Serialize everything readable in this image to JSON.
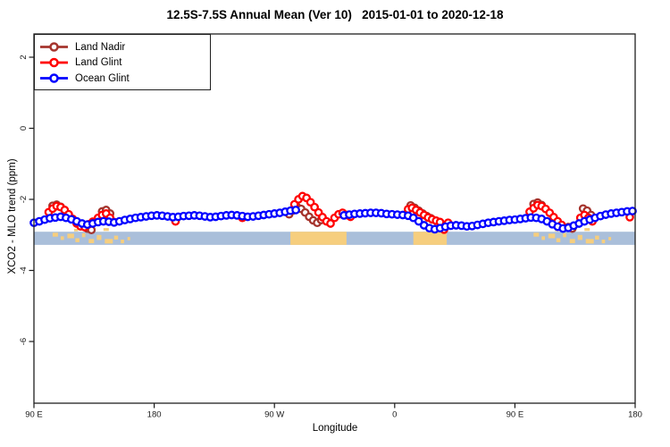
{
  "chart_data": {
    "type": "line",
    "title": "12.5S-7.5S Annual Mean (Ver 10)   2015-01-01 to 2020-12-18",
    "xlabel": "Longitude",
    "ylabel": "XCO2 - MLO trend (ppm)",
    "xlim": [
      90,
      540
    ],
    "ylim": [
      -7.7,
      2.65
    ],
    "grid": false,
    "legend_position": "top-left",
    "x_ticks": [
      {
        "lon": 90,
        "label": "90 E"
      },
      {
        "lon": 180,
        "label": "180"
      },
      {
        "lon": 270,
        "label": "90 W"
      },
      {
        "lon": 360,
        "label": "0"
      },
      {
        "lon": 450,
        "label": "90 E"
      },
      {
        "lon": 540,
        "label": "180"
      }
    ],
    "y_ticks": [
      {
        "v": 2,
        "label": "2"
      },
      {
        "v": 0,
        "label": "0"
      },
      {
        "v": -2,
        "label": "-2"
      },
      {
        "v": -4,
        "label": "-4"
      },
      {
        "v": -6,
        "label": "-6"
      }
    ],
    "legend": [
      {
        "label": "Land Nadir",
        "color": "#A5342D"
      },
      {
        "label": "Land Glint",
        "color": "#FF0000"
      },
      {
        "label": "Ocean Glint",
        "color": "#0000FF"
      }
    ],
    "map_band": {
      "v_top": -2.91,
      "v_bottom": -3.28,
      "ocean_color": "#AABFDA",
      "land_color": "#F6CE7E",
      "land_segments": [
        [
          282,
          324
        ],
        [
          374,
          399
        ]
      ],
      "islands": [
        {
          "lon": 104,
          "w": 4,
          "fy": 0.08,
          "fh": 0.3
        },
        {
          "lon": 110,
          "w": 2.5,
          "fy": 0.35,
          "fh": 0.28
        },
        {
          "lon": 115,
          "w": 5,
          "fy": 0.15,
          "fh": 0.35
        },
        {
          "lon": 121,
          "w": 3,
          "fy": 0.5,
          "fh": 0.3
        },
        {
          "lon": 126,
          "w": 2.5,
          "fy": 0.12,
          "fh": 0.3
        },
        {
          "lon": 131,
          "w": 4,
          "fy": 0.55,
          "fh": 0.32
        },
        {
          "lon": 137,
          "w": 3.5,
          "fy": 0.25,
          "fh": 0.38
        },
        {
          "lon": 143,
          "w": 6,
          "fy": 0.55,
          "fh": 0.35
        },
        {
          "lon": 150,
          "w": 3,
          "fy": 0.3,
          "fh": 0.3
        },
        {
          "lon": 155,
          "w": 2.5,
          "fy": 0.6,
          "fh": 0.28
        },
        {
          "lon": 120,
          "w": 3,
          "fy": -0.22,
          "fh": 0.2
        },
        {
          "lon": 142,
          "w": 4,
          "fy": -0.28,
          "fh": 0.22
        },
        {
          "lon": 160,
          "w": 2,
          "fy": 0.4,
          "fh": 0.25
        },
        {
          "lon": 464,
          "w": 4,
          "fy": 0.08,
          "fh": 0.3
        },
        {
          "lon": 470,
          "w": 2.5,
          "fy": 0.35,
          "fh": 0.28
        },
        {
          "lon": 475,
          "w": 5,
          "fy": 0.15,
          "fh": 0.35
        },
        {
          "lon": 481,
          "w": 3,
          "fy": 0.5,
          "fh": 0.3
        },
        {
          "lon": 486,
          "w": 2.5,
          "fy": 0.12,
          "fh": 0.3
        },
        {
          "lon": 491,
          "w": 4,
          "fy": 0.55,
          "fh": 0.32
        },
        {
          "lon": 497,
          "w": 3.5,
          "fy": 0.25,
          "fh": 0.38
        },
        {
          "lon": 503,
          "w": 6,
          "fy": 0.55,
          "fh": 0.35
        },
        {
          "lon": 510,
          "w": 3,
          "fy": 0.3,
          "fh": 0.3
        },
        {
          "lon": 515,
          "w": 2.5,
          "fy": 0.6,
          "fh": 0.28
        },
        {
          "lon": 480,
          "w": 3,
          "fy": -0.22,
          "fh": 0.2
        },
        {
          "lon": 502,
          "w": 4,
          "fy": -0.28,
          "fh": 0.22
        },
        {
          "lon": 520,
          "w": 2,
          "fy": 0.4,
          "fh": 0.25
        }
      ]
    },
    "series": [
      {
        "id": "land-nadir",
        "name": "Land Nadir",
        "color": "#A5342D",
        "points": [
          [
            104,
            -2.18
          ],
          [
            107,
            -2.15
          ],
          [
            110,
            -2.21
          ],
          [
            130,
            -2.82
          ],
          [
            133,
            -2.86
          ],
          [
            141,
            -2.34
          ],
          [
            144,
            -2.3
          ],
          [
            147,
            -2.4
          ],
          [
            281,
            -2.42
          ],
          [
            284,
            -2.31
          ],
          [
            287,
            -2.22
          ],
          [
            290,
            -2.27
          ],
          [
            293,
            -2.37
          ],
          [
            296,
            -2.49
          ],
          [
            299,
            -2.59
          ],
          [
            302,
            -2.66
          ],
          [
            305,
            -2.58
          ],
          [
            372,
            -2.17
          ],
          [
            375,
            -2.24
          ],
          [
            378,
            -2.32
          ],
          [
            381,
            -2.4
          ],
          [
            384,
            -2.47
          ],
          [
            387,
            -2.53
          ],
          [
            464,
            -2.13
          ],
          [
            467,
            -2.09
          ],
          [
            470,
            -2.16
          ],
          [
            490,
            -2.78
          ],
          [
            493,
            -2.82
          ],
          [
            501,
            -2.26
          ],
          [
            504,
            -2.32
          ],
          [
            507,
            -2.44
          ]
        ]
      },
      {
        "id": "land-glint",
        "name": "Land Glint",
        "color": "#FF0000",
        "points": [
          [
            101,
            -2.36
          ],
          [
            104,
            -2.26
          ],
          [
            107,
            -2.19
          ],
          [
            110,
            -2.22
          ],
          [
            113,
            -2.3
          ],
          [
            116,
            -2.42
          ],
          [
            119,
            -2.55
          ],
          [
            122,
            -2.68
          ],
          [
            125,
            -2.76
          ],
          [
            128,
            -2.78
          ],
          [
            131,
            -2.7
          ],
          [
            134,
            -2.63
          ],
          [
            138,
            -2.52
          ],
          [
            141,
            -2.44
          ],
          [
            144,
            -2.4
          ],
          [
            147,
            -2.52
          ],
          [
            150,
            -2.64
          ],
          [
            196,
            -2.62
          ],
          [
            246,
            -2.52
          ],
          [
            285,
            -2.14
          ],
          [
            288,
            -2.0
          ],
          [
            291,
            -1.91
          ],
          [
            294,
            -1.96
          ],
          [
            297,
            -2.08
          ],
          [
            300,
            -2.22
          ],
          [
            303,
            -2.37
          ],
          [
            306,
            -2.5
          ],
          [
            309,
            -2.62
          ],
          [
            312,
            -2.68
          ],
          [
            315,
            -2.52
          ],
          [
            318,
            -2.42
          ],
          [
            321,
            -2.38
          ],
          [
            324,
            -2.44
          ],
          [
            327,
            -2.49
          ],
          [
            370,
            -2.28
          ],
          [
            373,
            -2.24
          ],
          [
            376,
            -2.3
          ],
          [
            379,
            -2.37
          ],
          [
            382,
            -2.44
          ],
          [
            385,
            -2.51
          ],
          [
            388,
            -2.56
          ],
          [
            391,
            -2.6
          ],
          [
            394,
            -2.64
          ],
          [
            397,
            -2.85
          ],
          [
            400,
            -2.66
          ],
          [
            461,
            -2.35
          ],
          [
            464,
            -2.25
          ],
          [
            467,
            -2.16
          ],
          [
            470,
            -2.19
          ],
          [
            473,
            -2.27
          ],
          [
            476,
            -2.38
          ],
          [
            479,
            -2.5
          ],
          [
            482,
            -2.62
          ],
          [
            485,
            -2.72
          ],
          [
            499,
            -2.52
          ],
          [
            502,
            -2.44
          ],
          [
            505,
            -2.52
          ],
          [
            508,
            -2.62
          ],
          [
            536,
            -2.5
          ]
        ]
      },
      {
        "id": "ocean-glint",
        "name": "Ocean Glint",
        "color": "#0000FF",
        "points": [
          [
            90,
            -2.66
          ],
          [
            94,
            -2.62
          ],
          [
            98,
            -2.57
          ],
          [
            102,
            -2.53
          ],
          [
            106,
            -2.51
          ],
          [
            110,
            -2.49
          ],
          [
            114,
            -2.52
          ],
          [
            118,
            -2.56
          ],
          [
            122,
            -2.62
          ],
          [
            126,
            -2.68
          ],
          [
            130,
            -2.71
          ],
          [
            134,
            -2.68
          ],
          [
            138,
            -2.64
          ],
          [
            142,
            -2.62
          ],
          [
            146,
            -2.63
          ],
          [
            150,
            -2.65
          ],
          [
            154,
            -2.62
          ],
          [
            158,
            -2.58
          ],
          [
            162,
            -2.55
          ],
          [
            166,
            -2.52
          ],
          [
            170,
            -2.5
          ],
          [
            174,
            -2.48
          ],
          [
            178,
            -2.46
          ],
          [
            182,
            -2.45
          ],
          [
            186,
            -2.46
          ],
          [
            190,
            -2.48
          ],
          [
            194,
            -2.5
          ],
          [
            198,
            -2.49
          ],
          [
            202,
            -2.47
          ],
          [
            206,
            -2.46
          ],
          [
            210,
            -2.45
          ],
          [
            214,
            -2.46
          ],
          [
            218,
            -2.48
          ],
          [
            222,
            -2.5
          ],
          [
            226,
            -2.49
          ],
          [
            230,
            -2.47
          ],
          [
            234,
            -2.45
          ],
          [
            238,
            -2.44
          ],
          [
            242,
            -2.45
          ],
          [
            246,
            -2.47
          ],
          [
            250,
            -2.49
          ],
          [
            254,
            -2.48
          ],
          [
            258,
            -2.46
          ],
          [
            262,
            -2.44
          ],
          [
            266,
            -2.42
          ],
          [
            270,
            -2.4
          ],
          [
            274,
            -2.38
          ],
          [
            278,
            -2.35
          ],
          [
            282,
            -2.32
          ],
          [
            286,
            -2.3
          ],
          [
            322,
            -2.45
          ],
          [
            326,
            -2.43
          ],
          [
            330,
            -2.41
          ],
          [
            334,
            -2.4
          ],
          [
            338,
            -2.39
          ],
          [
            342,
            -2.38
          ],
          [
            346,
            -2.38
          ],
          [
            350,
            -2.39
          ],
          [
            354,
            -2.41
          ],
          [
            358,
            -2.42
          ],
          [
            362,
            -2.43
          ],
          [
            366,
            -2.44
          ],
          [
            370,
            -2.46
          ],
          [
            374,
            -2.52
          ],
          [
            378,
            -2.62
          ],
          [
            382,
            -2.73
          ],
          [
            386,
            -2.81
          ],
          [
            390,
            -2.84
          ],
          [
            394,
            -2.81
          ],
          [
            398,
            -2.77
          ],
          [
            402,
            -2.74
          ],
          [
            406,
            -2.73
          ],
          [
            410,
            -2.74
          ],
          [
            414,
            -2.76
          ],
          [
            418,
            -2.75
          ],
          [
            422,
            -2.72
          ],
          [
            426,
            -2.69
          ],
          [
            430,
            -2.66
          ],
          [
            434,
            -2.64
          ],
          [
            438,
            -2.62
          ],
          [
            442,
            -2.6
          ],
          [
            446,
            -2.58
          ],
          [
            450,
            -2.57
          ],
          [
            454,
            -2.55
          ],
          [
            458,
            -2.53
          ],
          [
            462,
            -2.51
          ],
          [
            466,
            -2.52
          ],
          [
            470,
            -2.55
          ],
          [
            474,
            -2.62
          ],
          [
            478,
            -2.7
          ],
          [
            482,
            -2.77
          ],
          [
            486,
            -2.82
          ],
          [
            490,
            -2.8
          ],
          [
            494,
            -2.74
          ],
          [
            498,
            -2.68
          ],
          [
            502,
            -2.62
          ],
          [
            506,
            -2.57
          ],
          [
            510,
            -2.52
          ],
          [
            514,
            -2.47
          ],
          [
            518,
            -2.43
          ],
          [
            522,
            -2.4
          ],
          [
            526,
            -2.38
          ],
          [
            530,
            -2.36
          ],
          [
            534,
            -2.34
          ],
          [
            538,
            -2.33
          ]
        ]
      }
    ]
  }
}
